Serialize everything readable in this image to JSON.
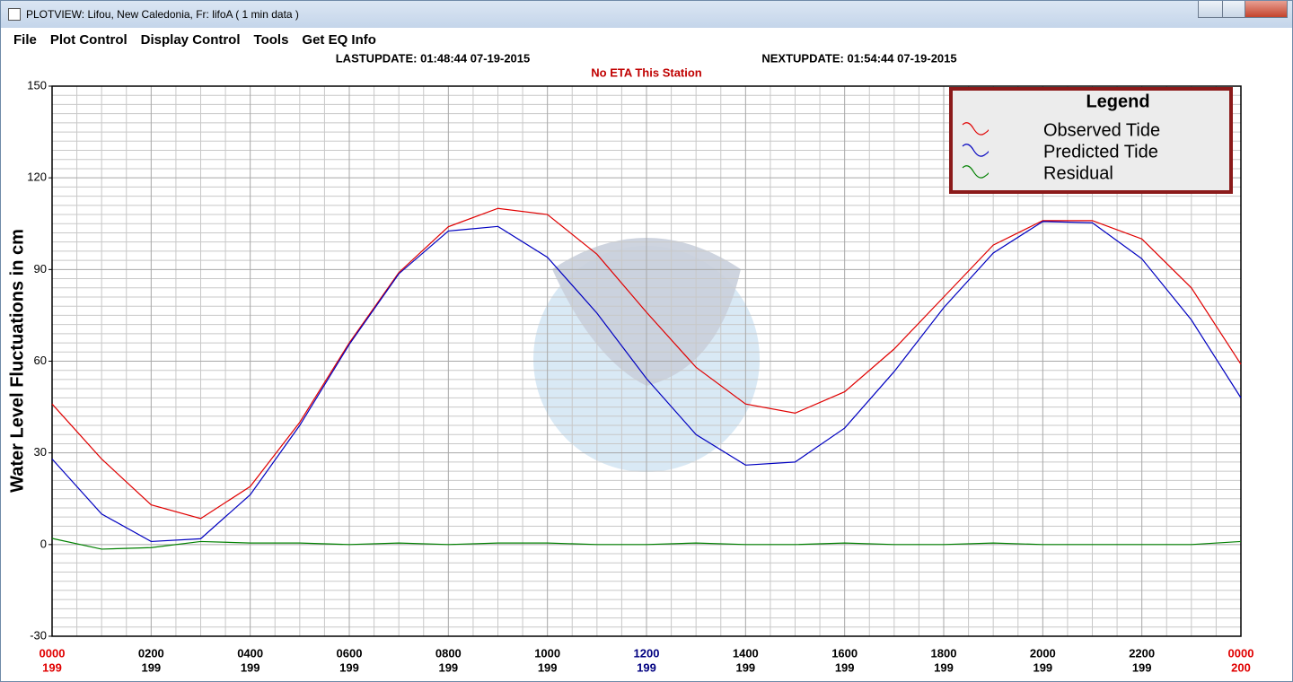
{
  "window": {
    "title": "PLOTVIEW:   Lifou, New Caledonia, Fr: lifoA (  1 min data )"
  },
  "menu": [
    "File",
    "Plot Control",
    "Display Control",
    "Tools",
    "Get EQ Info"
  ],
  "header": {
    "last_update": "LASTUPDATE: 01:48:44 07-19-2015",
    "next_update": "NEXTUPDATE: 01:54:44 07-19-2015",
    "eta": "No ETA This Station"
  },
  "chart_data": {
    "type": "line",
    "y_label": "Water Level Fluctuations in cm",
    "ylim": [
      -30,
      150
    ],
    "yticks": [
      -30,
      0,
      30,
      60,
      90,
      120,
      150
    ],
    "xlim": [
      0,
      24
    ],
    "xticks": [
      {
        "value": 0,
        "label": "0000"
      },
      {
        "value": 2,
        "label": "0200"
      },
      {
        "value": 4,
        "label": "0400"
      },
      {
        "value": 6,
        "label": "0600"
      },
      {
        "value": 8,
        "label": "0800"
      },
      {
        "value": 10,
        "label": "1000"
      },
      {
        "value": 12,
        "label": "1200"
      },
      {
        "value": 14,
        "label": "1400"
      },
      {
        "value": 16,
        "label": "1600"
      },
      {
        "value": 18,
        "label": "1800"
      },
      {
        "value": 20,
        "label": "2000"
      },
      {
        "value": 22,
        "label": "2200"
      },
      {
        "value": 24,
        "label": "0000"
      }
    ],
    "xtick_sublabels": [
      "199",
      "199",
      "199",
      "199",
      "199",
      "199",
      "199",
      "199",
      "199",
      "199",
      "199",
      "199",
      "200"
    ],
    "xtick_colors": [
      "#e00000",
      "#000000",
      "#000000",
      "#000000",
      "#000000",
      "#000000",
      "#000080",
      "#000000",
      "#000000",
      "#000000",
      "#000000",
      "#000000",
      "#e00000"
    ],
    "grid": true,
    "legend_title": "Legend",
    "legend": "upper right",
    "x": [
      0,
      1,
      2,
      3,
      4,
      5,
      6,
      7,
      8,
      9,
      10,
      11,
      12,
      13,
      14,
      15,
      16,
      17,
      18,
      19,
      20,
      21,
      22,
      23,
      24
    ],
    "series": [
      {
        "name": "Observed Tide",
        "color": "#e00000",
        "values": [
          46,
          28,
          13,
          8.5,
          19,
          40,
          66,
          89,
          104,
          110,
          108,
          95,
          76,
          58,
          46,
          43,
          50,
          64,
          81,
          98,
          106,
          106,
          100,
          84,
          59
        ]
      },
      {
        "name": "Predicted Tide",
        "color": "#0000c0",
        "values": [
          28,
          10,
          1,
          1.9,
          16.3,
          39,
          65.5,
          88.6,
          102.6,
          104.1,
          94,
          75.7,
          54.3,
          36,
          26,
          27,
          38.1,
          56.6,
          77.5,
          95.4,
          105.7,
          105.3,
          93.5,
          73.5,
          48
        ]
      },
      {
        "name": "Residual",
        "color": "#008000",
        "values": [
          2,
          -1.5,
          -1,
          1,
          0.5,
          0.5,
          0,
          0.5,
          0,
          0.5,
          0.5,
          0,
          0,
          0.5,
          0,
          0,
          0.5,
          0,
          0,
          0.5,
          0,
          0,
          0,
          0,
          1
        ]
      }
    ]
  }
}
